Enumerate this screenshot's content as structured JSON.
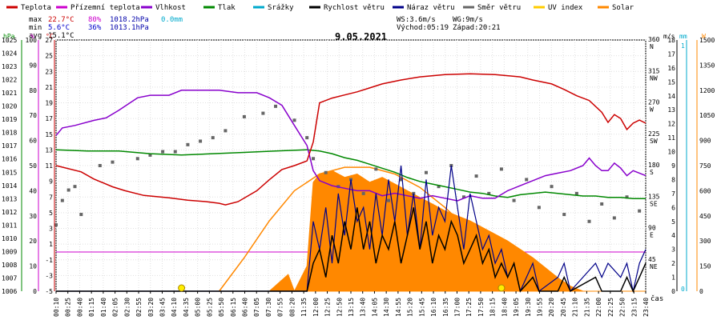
{
  "chart_data": {
    "type": "line",
    "title": "9.05.2021",
    "xlabel": "čas",
    "legend": [
      {
        "name": "Teplota",
        "color": "#cc0000"
      },
      {
        "name": "Přízemní teplota",
        "color": "#cc00cc"
      },
      {
        "name": "Vlhkost",
        "color": "#8800cc"
      },
      {
        "name": "Tlak",
        "color": "#008800"
      },
      {
        "name": "Srážky",
        "color": "#00aacc"
      },
      {
        "name": "Rychlost větru",
        "color": "#000000"
      },
      {
        "name": "Náraz větru",
        "color": "#000088"
      },
      {
        "name": "Směr větru",
        "color": "#666666"
      },
      {
        "name": "UV index",
        "color": "#ffcc00"
      },
      {
        "name": "Solar",
        "color": "#ff8800"
      }
    ],
    "stats": {
      "max": {
        "label": "max",
        "temp": "22.7°C",
        "humidity": "80%",
        "pressure": "1018.2hPa",
        "rain": "0.0mm"
      },
      "min": {
        "label": "min",
        "temp": "5.6°C",
        "humidity": "36%",
        "pressure": "1013.1hPa"
      },
      "avg": {
        "label": "avg",
        "temp": "15.1°C"
      },
      "ws": "WS:3.6m/s",
      "wg": "WG:9m/s",
      "sunrise": "Východ:05:19",
      "sunset": "Západ:20:21"
    },
    "axes": {
      "hpa": {
        "unit": "hPa",
        "min": 1006,
        "max": 1025,
        "step": 1,
        "color": "#008800"
      },
      "pct": {
        "unit": "%",
        "min": 0,
        "max": 100,
        "step": 10,
        "color": "#cc00cc"
      },
      "temp": {
        "unit": "°C",
        "min": -5,
        "max": 27,
        "step": 2,
        "color": "#cc0000"
      },
      "dir": {
        "labels": [
          [
            "360",
            "N"
          ],
          [
            "315",
            "NW"
          ],
          [
            "270",
            "W"
          ],
          [
            "225",
            "SW"
          ],
          [
            "180",
            "S"
          ],
          [
            "135",
            "SE"
          ],
          [
            "90",
            "E"
          ],
          [
            "45",
            "NE"
          ]
        ],
        "min": 0,
        "max": 360
      },
      "ms": {
        "unit": "m/s",
        "min": 0,
        "max": 18,
        "step": 1
      },
      "mm": {
        "unit": "mm",
        "ticks": [
          "1",
          "0"
        ]
      },
      "w": {
        "unit": "W",
        "min": 0,
        "max": 1500,
        "step": 150
      }
    },
    "x_ticks": [
      "00:10",
      "00:25",
      "00:40",
      "01:15",
      "01:40",
      "02:05",
      "02:30",
      "02:55",
      "03:20",
      "03:45",
      "04:10",
      "04:35",
      "05:00",
      "05:25",
      "05:50",
      "06:15",
      "06:40",
      "07:05",
      "07:30",
      "07:55",
      "08:20",
      "11:35",
      "12:00",
      "12:25",
      "12:50",
      "13:15",
      "13:40",
      "14:05",
      "14:30",
      "14:55",
      "15:20",
      "15:45",
      "16:10",
      "16:35",
      "17:00",
      "17:25",
      "17:50",
      "18:15",
      "18:40",
      "19:05",
      "19:30",
      "19:55",
      "20:20",
      "20:45",
      "21:10",
      "21:35",
      "22:00",
      "22:25",
      "22:50",
      "23:15",
      "23:40"
    ],
    "temperature": [
      [
        0,
        11.0
      ],
      [
        4,
        10.2
      ],
      [
        6,
        9.3
      ],
      [
        9,
        8.3
      ],
      [
        11,
        7.8
      ],
      [
        14,
        7.2
      ],
      [
        18,
        6.9
      ],
      [
        21,
        6.6
      ],
      [
        24,
        6.4
      ],
      [
        26,
        6.2
      ],
      [
        27,
        6.0
      ],
      [
        29,
        6.4
      ],
      [
        32,
        7.8
      ],
      [
        34,
        9.2
      ],
      [
        36,
        10.5
      ],
      [
        38,
        11.0
      ],
      [
        40,
        11.6
      ],
      [
        41,
        14.0
      ],
      [
        42,
        19.0
      ],
      [
        44,
        19.6
      ],
      [
        46,
        20.0
      ],
      [
        48,
        20.4
      ],
      [
        50,
        20.9
      ],
      [
        52,
        21.4
      ],
      [
        55,
        21.9
      ],
      [
        58,
        22.3
      ],
      [
        62,
        22.6
      ],
      [
        66,
        22.7
      ],
      [
        70,
        22.6
      ],
      [
        74,
        22.3
      ],
      [
        76,
        21.9
      ],
      [
        79,
        21.4
      ],
      [
        81,
        20.7
      ],
      [
        83,
        19.9
      ],
      [
        85,
        19.3
      ],
      [
        87,
        17.8
      ],
      [
        88,
        16.5
      ],
      [
        89,
        17.5
      ],
      [
        90,
        17.0
      ],
      [
        91,
        15.6
      ],
      [
        92,
        16.4
      ],
      [
        93,
        16.8
      ],
      [
        94,
        16.4
      ]
    ],
    "humidity": [
      [
        0,
        62
      ],
      [
        1,
        65
      ],
      [
        3,
        66
      ],
      [
        6,
        68
      ],
      [
        8,
        69
      ],
      [
        10,
        72
      ],
      [
        13,
        77
      ],
      [
        15,
        78
      ],
      [
        18,
        78
      ],
      [
        20,
        80
      ],
      [
        23,
        80
      ],
      [
        26,
        80
      ],
      [
        29,
        79
      ],
      [
        32,
        79
      ],
      [
        34,
        77
      ],
      [
        36,
        74
      ],
      [
        38,
        66
      ],
      [
        40,
        58
      ],
      [
        41,
        48
      ],
      [
        42,
        44
      ],
      [
        44,
        42
      ],
      [
        46,
        41
      ],
      [
        48,
        40
      ],
      [
        50,
        40
      ],
      [
        52,
        38
      ],
      [
        54,
        39
      ],
      [
        56,
        38
      ],
      [
        58,
        37
      ],
      [
        60,
        38
      ],
      [
        62,
        37
      ],
      [
        64,
        36
      ],
      [
        66,
        38
      ],
      [
        68,
        37
      ],
      [
        70,
        37
      ],
      [
        72,
        40
      ],
      [
        74,
        42
      ],
      [
        76,
        44
      ],
      [
        78,
        46
      ],
      [
        80,
        47
      ],
      [
        82,
        48
      ],
      [
        84,
        50
      ],
      [
        85,
        53
      ],
      [
        86,
        50
      ],
      [
        87,
        48
      ],
      [
        88,
        48
      ],
      [
        89,
        51
      ],
      [
        90,
        49
      ],
      [
        91,
        46
      ],
      [
        92,
        48
      ],
      [
        93,
        47
      ],
      [
        94,
        46
      ]
    ],
    "pressure": [
      [
        0,
        1016.7
      ],
      [
        5,
        1016.6
      ],
      [
        10,
        1016.6
      ],
      [
        15,
        1016.4
      ],
      [
        20,
        1016.3
      ],
      [
        25,
        1016.4
      ],
      [
        30,
        1016.5
      ],
      [
        35,
        1016.6
      ],
      [
        40,
        1016.7
      ],
      [
        42,
        1016.6
      ],
      [
        44,
        1016.4
      ],
      [
        46,
        1016.1
      ],
      [
        48,
        1015.9
      ],
      [
        50,
        1015.6
      ],
      [
        52,
        1015.3
      ],
      [
        54,
        1015.0
      ],
      [
        56,
        1014.6
      ],
      [
        58,
        1014.3
      ],
      [
        60,
        1014.1
      ],
      [
        62,
        1013.9
      ],
      [
        64,
        1013.7
      ],
      [
        66,
        1013.5
      ],
      [
        68,
        1013.4
      ],
      [
        70,
        1013.2
      ],
      [
        72,
        1013.1
      ],
      [
        74,
        1013.3
      ],
      [
        76,
        1013.4
      ],
      [
        78,
        1013.5
      ],
      [
        80,
        1013.4
      ],
      [
        82,
        1013.3
      ],
      [
        84,
        1013.2
      ],
      [
        86,
        1013.2
      ],
      [
        88,
        1013.1
      ],
      [
        90,
        1013.1
      ],
      [
        92,
        1013.0
      ],
      [
        94,
        1013.0
      ]
    ],
    "solar": [
      [
        0,
        0
      ],
      [
        26,
        0
      ],
      [
        30,
        0
      ],
      [
        34,
        0
      ],
      [
        37,
        100
      ],
      [
        38,
        0
      ],
      [
        40,
        150
      ],
      [
        41,
        650
      ],
      [
        42,
        700
      ],
      [
        44,
        720
      ],
      [
        46,
        680
      ],
      [
        48,
        700
      ],
      [
        50,
        650
      ],
      [
        52,
        680
      ],
      [
        54,
        640
      ],
      [
        56,
        600
      ],
      [
        58,
        560
      ],
      [
        60,
        520
      ],
      [
        62,
        480
      ],
      [
        64,
        450
      ],
      [
        66,
        420
      ],
      [
        68,
        380
      ],
      [
        70,
        340
      ],
      [
        72,
        300
      ],
      [
        74,
        250
      ],
      [
        76,
        200
      ],
      [
        78,
        140
      ],
      [
        80,
        80
      ],
      [
        82,
        30
      ],
      [
        84,
        0
      ],
      [
        94,
        0
      ]
    ],
    "solar_theory": [
      [
        26,
        0
      ],
      [
        30,
        200
      ],
      [
        34,
        420
      ],
      [
        38,
        600
      ],
      [
        42,
        700
      ],
      [
        46,
        740
      ],
      [
        50,
        740
      ],
      [
        54,
        700
      ],
      [
        58,
        620
      ],
      [
        62,
        500
      ],
      [
        66,
        360
      ],
      [
        70,
        200
      ],
      [
        74,
        80
      ],
      [
        77,
        0
      ]
    ],
    "wind_speed": [
      [
        0,
        0
      ],
      [
        40,
        0
      ],
      [
        41,
        2
      ],
      [
        42,
        3
      ],
      [
        43,
        1
      ],
      [
        44,
        4
      ],
      [
        45,
        2
      ],
      [
        46,
        5
      ],
      [
        47,
        3
      ],
      [
        48,
        6
      ],
      [
        49,
        3
      ],
      [
        50,
        5
      ],
      [
        51,
        2
      ],
      [
        52,
        4
      ],
      [
        53,
        3
      ],
      [
        54,
        5
      ],
      [
        55,
        2
      ],
      [
        56,
        4
      ],
      [
        57,
        6
      ],
      [
        58,
        3
      ],
      [
        59,
        5
      ],
      [
        60,
        2
      ],
      [
        61,
        4
      ],
      [
        62,
        3
      ],
      [
        63,
        5
      ],
      [
        64,
        4
      ],
      [
        65,
        2
      ],
      [
        66,
        3
      ],
      [
        67,
        4
      ],
      [
        68,
        2
      ],
      [
        69,
        3
      ],
      [
        70,
        1
      ],
      [
        71,
        2
      ],
      [
        72,
        1
      ],
      [
        73,
        2
      ],
      [
        74,
        0
      ],
      [
        76,
        1
      ],
      [
        77,
        0
      ],
      [
        80,
        0
      ],
      [
        81,
        1
      ],
      [
        82,
        0
      ],
      [
        86,
        1
      ],
      [
        87,
        0
      ],
      [
        90,
        0
      ],
      [
        91,
        1
      ],
      [
        92,
        0
      ],
      [
        93,
        1
      ],
      [
        94,
        2
      ]
    ],
    "wind_gust": [
      [
        0,
        0
      ],
      [
        40,
        0
      ],
      [
        41,
        5
      ],
      [
        42,
        3
      ],
      [
        43,
        6
      ],
      [
        44,
        2
      ],
      [
        45,
        7
      ],
      [
        46,
        4
      ],
      [
        47,
        8
      ],
      [
        48,
        5
      ],
      [
        49,
        6
      ],
      [
        50,
        3
      ],
      [
        51,
        7
      ],
      [
        52,
        4
      ],
      [
        53,
        8
      ],
      [
        54,
        5
      ],
      [
        55,
        9
      ],
      [
        56,
        4
      ],
      [
        57,
        7
      ],
      [
        58,
        3
      ],
      [
        59,
        8
      ],
      [
        60,
        4
      ],
      [
        61,
        6
      ],
      [
        62,
        5
      ],
      [
        63,
        9
      ],
      [
        64,
        6
      ],
      [
        65,
        3
      ],
      [
        66,
        7
      ],
      [
        67,
        5
      ],
      [
        68,
        3
      ],
      [
        69,
        4
      ],
      [
        70,
        2
      ],
      [
        71,
        3
      ],
      [
        72,
        1
      ],
      [
        73,
        2
      ],
      [
        74,
        0
      ],
      [
        75,
        1
      ],
      [
        76,
        2
      ],
      [
        77,
        0
      ],
      [
        80,
        1
      ],
      [
        81,
        2
      ],
      [
        82,
        0
      ],
      [
        86,
        2
      ],
      [
        87,
        1
      ],
      [
        88,
        2
      ],
      [
        90,
        1
      ],
      [
        91,
        2
      ],
      [
        92,
        0
      ],
      [
        93,
        2
      ],
      [
        94,
        3
      ]
    ],
    "wind_dir": [
      [
        0,
        95
      ],
      [
        1,
        130
      ],
      [
        2,
        145
      ],
      [
        3,
        150
      ],
      [
        4,
        110
      ],
      [
        7,
        180
      ],
      [
        9,
        185
      ],
      [
        13,
        190
      ],
      [
        15,
        195
      ],
      [
        17,
        200
      ],
      [
        19,
        200
      ],
      [
        21,
        210
      ],
      [
        23,
        215
      ],
      [
        25,
        220
      ],
      [
        27,
        230
      ],
      [
        30,
        250
      ],
      [
        33,
        255
      ],
      [
        35,
        265
      ],
      [
        38,
        245
      ],
      [
        40,
        220
      ],
      [
        41,
        190
      ],
      [
        43,
        170
      ],
      [
        45,
        150
      ],
      [
        47,
        160
      ],
      [
        49,
        140
      ],
      [
        51,
        175
      ],
      [
        53,
        130
      ],
      [
        55,
        160
      ],
      [
        57,
        140
      ],
      [
        59,
        170
      ],
      [
        61,
        150
      ],
      [
        63,
        180
      ],
      [
        65,
        135
      ],
      [
        67,
        165
      ],
      [
        69,
        140
      ],
      [
        71,
        175
      ],
      [
        73,
        130
      ],
      [
        75,
        160
      ],
      [
        77,
        120
      ],
      [
        79,
        150
      ],
      [
        81,
        110
      ],
      [
        83,
        140
      ],
      [
        85,
        100
      ],
      [
        87,
        125
      ],
      [
        89,
        105
      ],
      [
        91,
        135
      ],
      [
        93,
        115
      ]
    ],
    "uv": [
      [
        20,
        0
      ],
      [
        71,
        0
      ]
    ],
    "zero_line_temp": 0
  }
}
